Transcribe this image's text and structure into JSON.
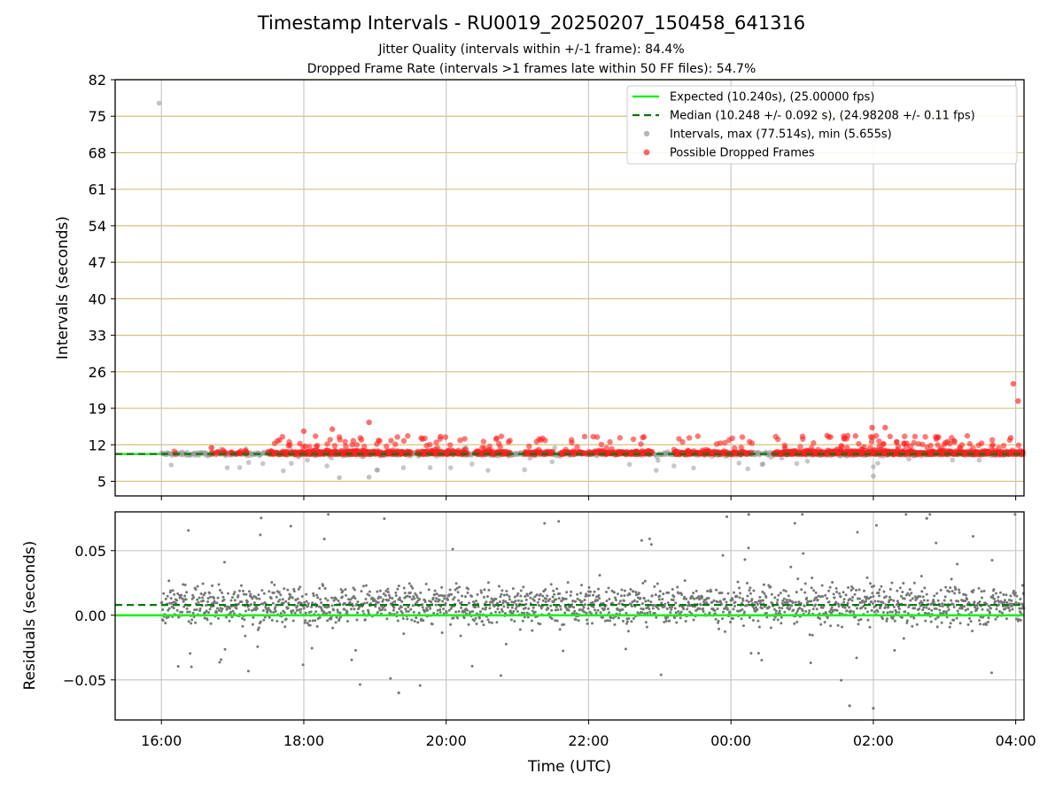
{
  "title": "Timestamp Intervals - RU0019_20250207_150458_641316",
  "subtitle_jitter": "Jitter Quality (intervals within +/-1 frame): 84.4%",
  "subtitle_dropped": "Dropped Frame Rate (intervals >1 frames late within 50 FF files): 54.7%",
  "colors": {
    "expected": "#22ee22",
    "median": "#087808",
    "intervals": "#999999",
    "dropped": "#ff2020",
    "residuals": "#777777",
    "hgrid_top": "#d4c27a",
    "grid": "#c8c8c8"
  },
  "chart_data": [
    {
      "type": "scatter",
      "name": "intervals",
      "xlabel": "",
      "ylabel": "Intervals (seconds)",
      "x_axis_type": "time",
      "x_range": [
        "15:21",
        "04:07"
      ],
      "x_ticks": [
        "16:00",
        "18:00",
        "20:00",
        "22:00",
        "00:00",
        "02:00",
        "04:00"
      ],
      "y_ticks": [
        5,
        12,
        19,
        26,
        33,
        40,
        47,
        54,
        61,
        68,
        75,
        82
      ],
      "ylim": [
        2.2,
        82
      ],
      "grid": true,
      "legend_position": "top-right",
      "legend": [
        {
          "label": "Expected (10.240s), (25.00000 fps)",
          "kind": "line"
        },
        {
          "label": "Median (10.248 +/- 0.092 s), (24.98208 +/- 0.11 fps)",
          "kind": "dashed"
        },
        {
          "label": "Intervals, max (77.514s), min (5.655s)",
          "kind": "dot-gray"
        },
        {
          "label": "Possible Dropped Frames",
          "kind": "dot-red"
        }
      ],
      "expected_interval": 10.24,
      "median_interval": 10.248,
      "max_interval": 77.514,
      "min_interval": 5.655,
      "notable_points": [
        {
          "time": "15:58",
          "value": 77.5,
          "series": "Intervals"
        },
        {
          "time": "03:58",
          "value": 23.7,
          "series": "Possible Dropped Frames"
        },
        {
          "time": "04:02",
          "value": 20.4,
          "series": "Possible Dropped Frames"
        },
        {
          "time": "18:00",
          "value": 14.6,
          "series": "Possible Dropped Frames"
        },
        {
          "time": "18:24",
          "value": 15.0,
          "series": "Possible Dropped Frames"
        },
        {
          "time": "18:55",
          "value": 16.3,
          "series": "Possible Dropped Frames"
        },
        {
          "time": "01:59",
          "value": 15.3,
          "series": "Possible Dropped Frames"
        },
        {
          "time": "02:10",
          "value": 15.3,
          "series": "Possible Dropped Frames"
        },
        {
          "time": "18:30",
          "value": 5.7,
          "series": "Intervals"
        },
        {
          "time": "18:55",
          "value": 5.8,
          "series": "Intervals"
        },
        {
          "time": "02:00",
          "value": 6.0,
          "series": "Intervals"
        }
      ]
    },
    {
      "type": "scatter",
      "name": "residuals",
      "xlabel": "Time (UTC)",
      "ylabel": "Residuals (seconds)",
      "x_axis_type": "time",
      "x_range": [
        "15:21",
        "04:07"
      ],
      "x_ticks": [
        "16:00",
        "18:00",
        "20:00",
        "22:00",
        "00:00",
        "02:00",
        "04:00"
      ],
      "y_ticks": [
        0.05,
        0.0,
        -0.05
      ],
      "y_tick_labels": [
        "0.05",
        "0.00",
        "−0.05"
      ],
      "ylim": [
        -0.081,
        0.08
      ],
      "grid": true,
      "expected_residual": 0.0,
      "median_residual": 0.008,
      "typical_spread": 0.015,
      "extremes": [
        {
          "time": "00:15",
          "value": 0.078
        },
        {
          "time": "02:45",
          "value": 0.075
        },
        {
          "time": "19:20",
          "value": -0.06
        },
        {
          "time": "01:40",
          "value": -0.07
        },
        {
          "time": "02:00",
          "value": -0.072
        }
      ]
    }
  ]
}
